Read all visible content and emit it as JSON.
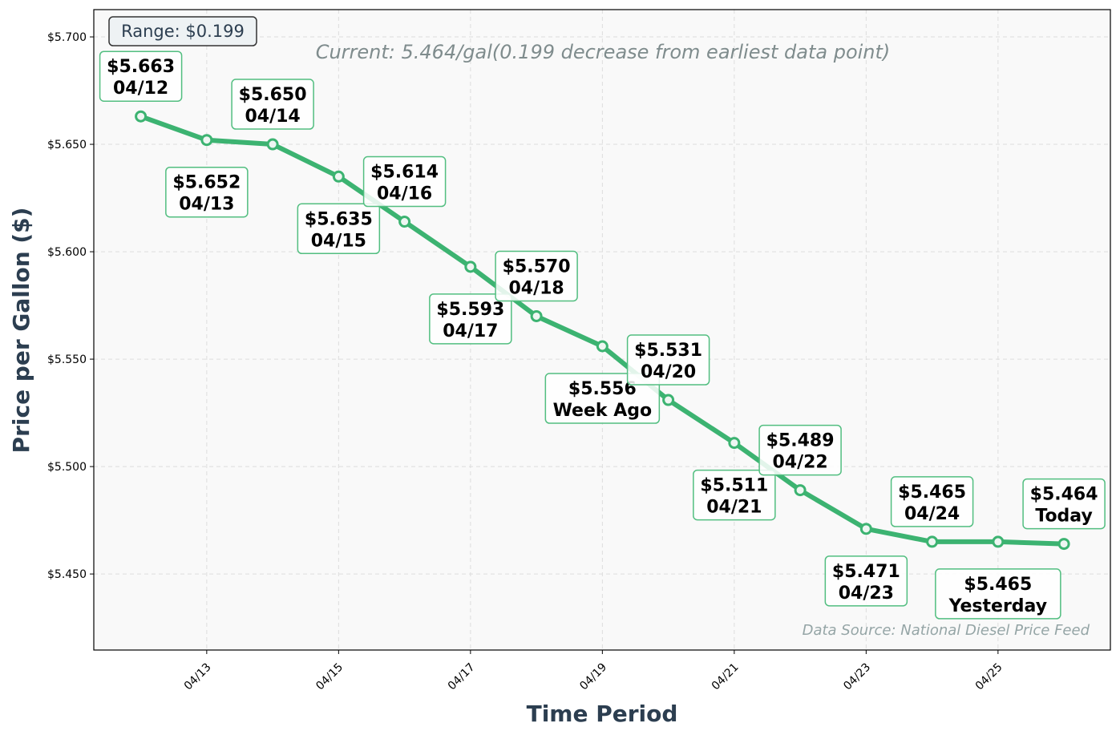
{
  "chart_data": {
    "type": "line",
    "xlabel": "Time Period",
    "ylabel": "Price per Gallon ($)",
    "x": [
      "04/12",
      "04/13",
      "04/14",
      "04/15",
      "04/16",
      "04/17",
      "04/18",
      "04/19",
      "04/20",
      "04/21",
      "04/22",
      "04/23",
      "04/24",
      "04/25",
      "04/26"
    ],
    "values": [
      5.663,
      5.652,
      5.65,
      5.635,
      5.614,
      5.593,
      5.57,
      5.556,
      5.531,
      5.511,
      5.489,
      5.471,
      5.465,
      5.465,
      5.464
    ],
    "point_labels": [
      {
        "price": "$5.663",
        "tag": "04/12"
      },
      {
        "price": "$5.652",
        "tag": "04/13"
      },
      {
        "price": "$5.650",
        "tag": "04/14"
      },
      {
        "price": "$5.635",
        "tag": "04/15"
      },
      {
        "price": "$5.614",
        "tag": "04/16"
      },
      {
        "price": "$5.593",
        "tag": "04/17"
      },
      {
        "price": "$5.570",
        "tag": "04/18"
      },
      {
        "price": "$5.556",
        "tag": "Week Ago"
      },
      {
        "price": "$5.531",
        "tag": "04/20"
      },
      {
        "price": "$5.511",
        "tag": "04/21"
      },
      {
        "price": "$5.489",
        "tag": "04/22"
      },
      {
        "price": "$5.471",
        "tag": "04/23"
      },
      {
        "price": "$5.465",
        "tag": "04/24"
      },
      {
        "price": "$5.465",
        "tag": "Yesterday"
      },
      {
        "price": "$5.464",
        "tag": "Today"
      }
    ],
    "xticks": [
      "04/13",
      "04/15",
      "04/17",
      "04/19",
      "04/21",
      "04/23",
      "04/25"
    ],
    "yticks": [
      5.45,
      5.5,
      5.55,
      5.6,
      5.65,
      5.7
    ],
    "ytick_labels": [
      "$5.450",
      "$5.500",
      "$5.550",
      "$5.600",
      "$5.650",
      "$5.700"
    ],
    "ylim": [
      5.4146,
      5.7127
    ],
    "grid": true,
    "line_color": "#3cb371",
    "annotations": {
      "range": "Range: $0.199",
      "current": "Current: 5.464/gal(0.199 decrease from earliest data point)",
      "source": "Data Source: National Diesel Price Feed"
    }
  }
}
